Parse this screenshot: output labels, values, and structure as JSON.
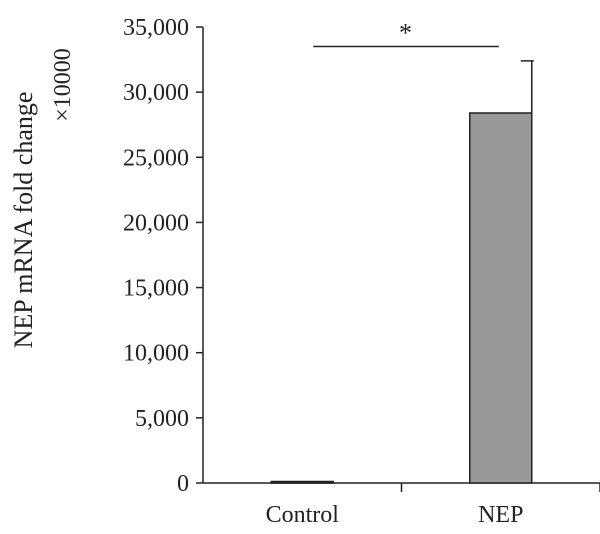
{
  "chart_data": {
    "type": "bar",
    "categories": [
      "Control",
      "NEP"
    ],
    "values": [
      1,
      28400
    ],
    "error_upper": [
      0,
      4000
    ],
    "ylabel": "NEP mRNA fold change",
    "ylabel_multiplier": "×10000",
    "ylim": [
      0,
      35000
    ],
    "yticks": [
      0,
      5000,
      10000,
      15000,
      20000,
      25000,
      30000,
      35000
    ],
    "ytick_labels": [
      "0",
      "5,000",
      "10,000",
      "15,000",
      "20,000",
      "25,000",
      "30,000",
      "35,000"
    ],
    "significance": {
      "from": "Control",
      "to": "NEP",
      "label": "*",
      "y": 33500
    },
    "bar_color": "#999999",
    "bar_edge_color": "#222222",
    "grid": false,
    "legend": "none"
  }
}
